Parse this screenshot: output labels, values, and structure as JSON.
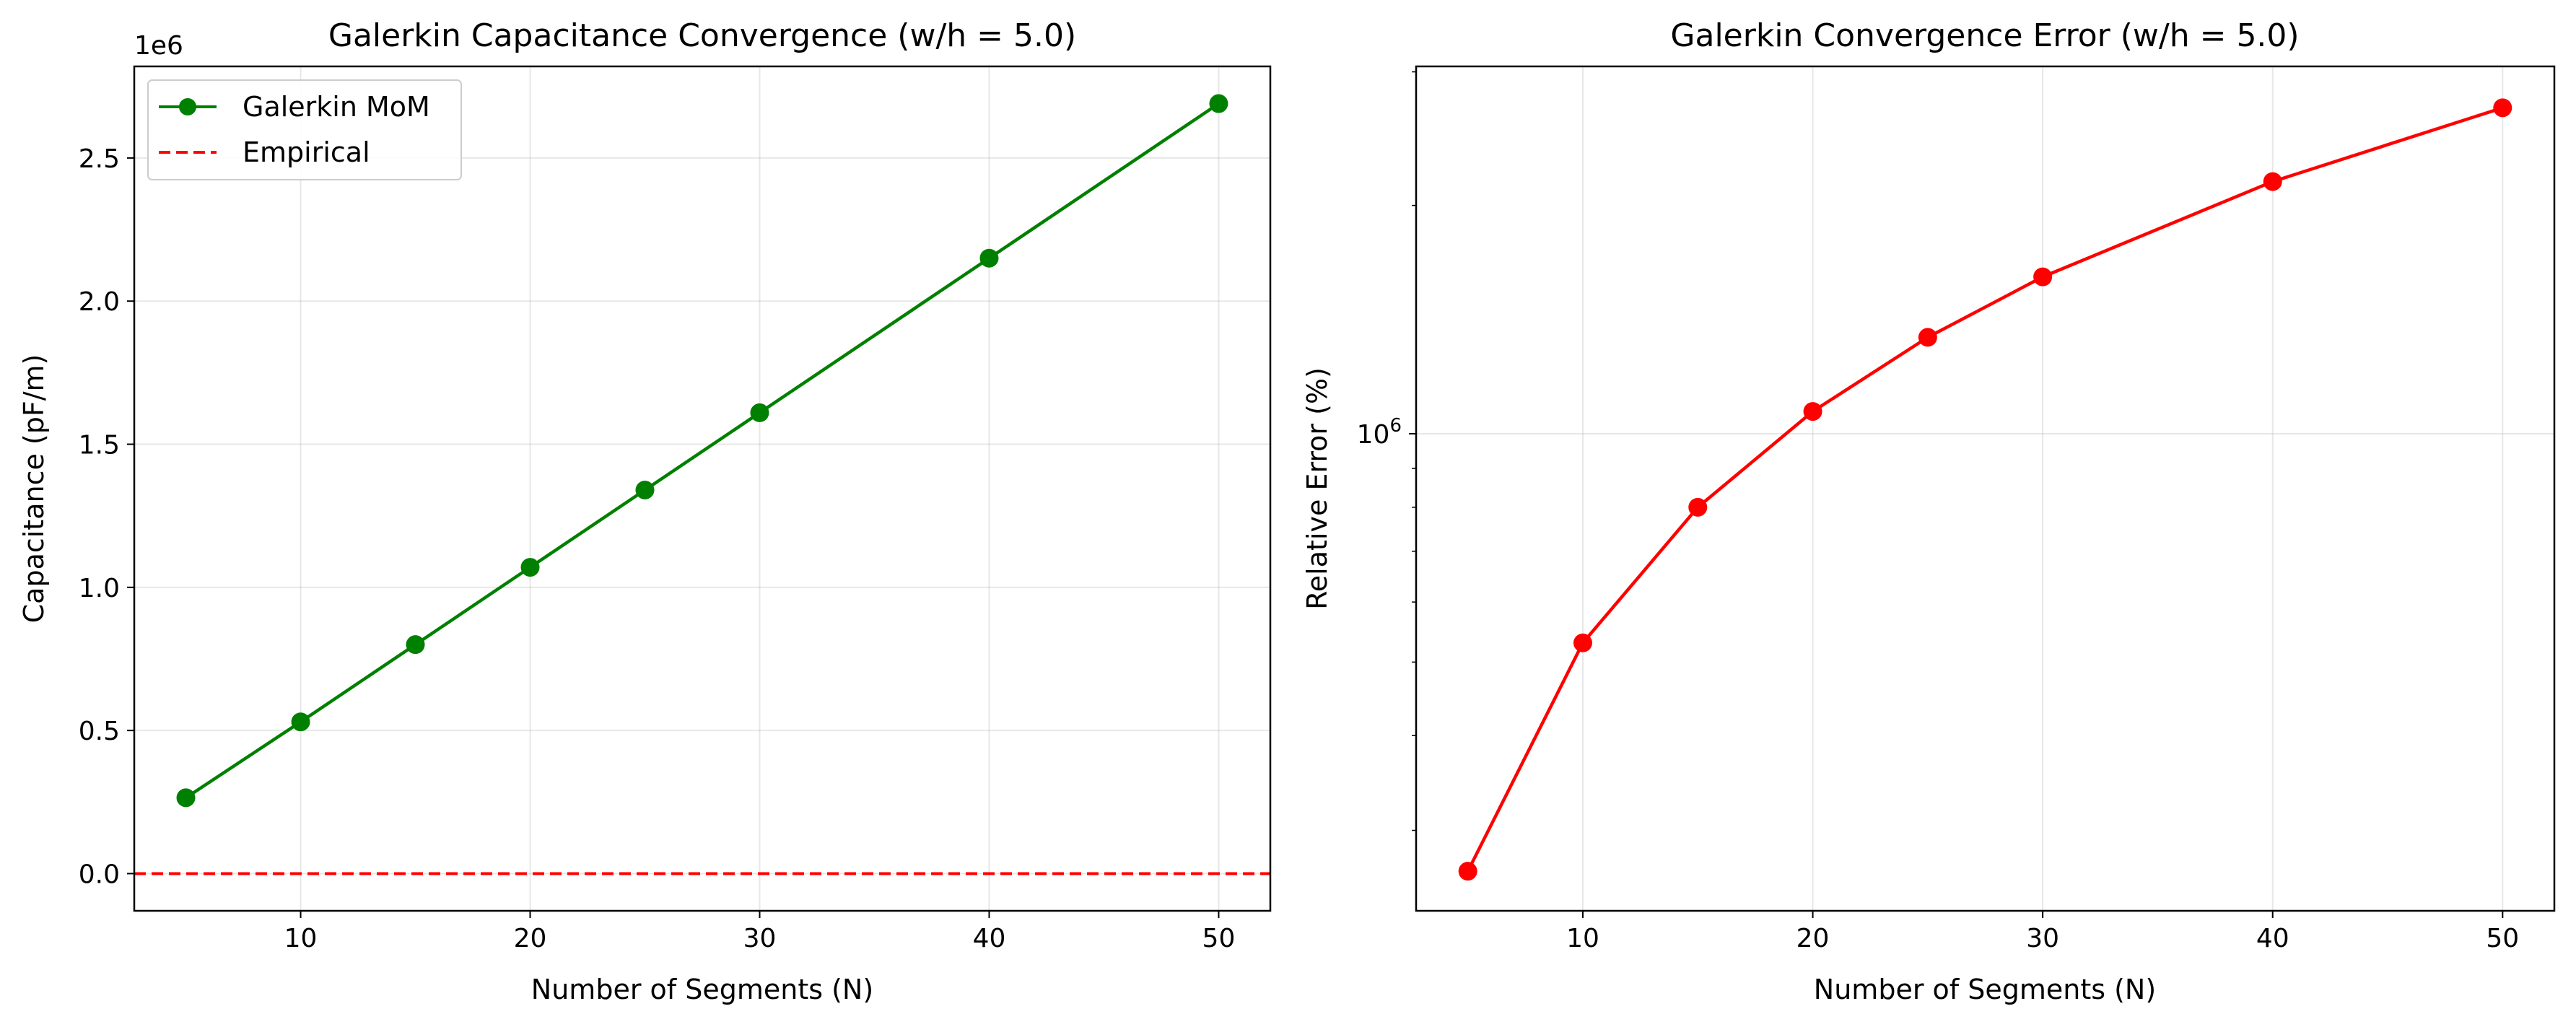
{
  "chart_data": [
    {
      "type": "line",
      "title": "Galerkin Capacitance Convergence (w/h = 5.0)",
      "xlabel": "Number of Segments (N)",
      "ylabel": "Capacitance (pF/m)",
      "y_offset_label": "1e6",
      "x": [
        5,
        10,
        15,
        20,
        25,
        30,
        40,
        50
      ],
      "series": [
        {
          "name": "Galerkin MoM",
          "color": "#008000",
          "values": [
            265000,
            530000,
            800000,
            1070000,
            1340000,
            1610000,
            2150000,
            2690000
          ]
        }
      ],
      "reference_line": {
        "name": "Empirical",
        "value": 0,
        "color": "#ff0000",
        "style": "dashed"
      },
      "xlim": [
        2.75,
        52.25
      ],
      "ylim": [
        -130000,
        2820000
      ],
      "xticks": [
        10,
        20,
        30,
        40,
        50
      ],
      "xtick_labels": [
        "10",
        "20",
        "30",
        "40",
        "50"
      ],
      "yticks": [
        0,
        500000,
        1000000,
        1500000,
        2000000,
        2500000
      ],
      "ytick_labels": [
        "0.0",
        "0.5",
        "1.0",
        "1.5",
        "2.0",
        "2.5"
      ],
      "grid": true,
      "legend_position": "top-left"
    },
    {
      "type": "line",
      "title": "Galerkin Convergence Error (w/h = 5.0)",
      "xlabel": "Number of Segments (N)",
      "ylabel": "Relative Error (%)",
      "yscale": "log",
      "x": [
        5,
        10,
        15,
        20,
        25,
        30,
        40,
        50
      ],
      "series": [
        {
          "color": "#ff0000",
          "values": [
            265000,
            530000,
            800000,
            1070000,
            1340000,
            1610000,
            2150000,
            2690000
          ]
        }
      ],
      "xlim": [
        2.75,
        52.25
      ],
      "ylim": [
        235000,
        3050000
      ],
      "xticks": [
        10,
        20,
        30,
        40,
        50
      ],
      "xtick_labels": [
        "10",
        "20",
        "30",
        "40",
        "50"
      ],
      "yticks_major": [
        1000000
      ],
      "grid": true
    }
  ]
}
